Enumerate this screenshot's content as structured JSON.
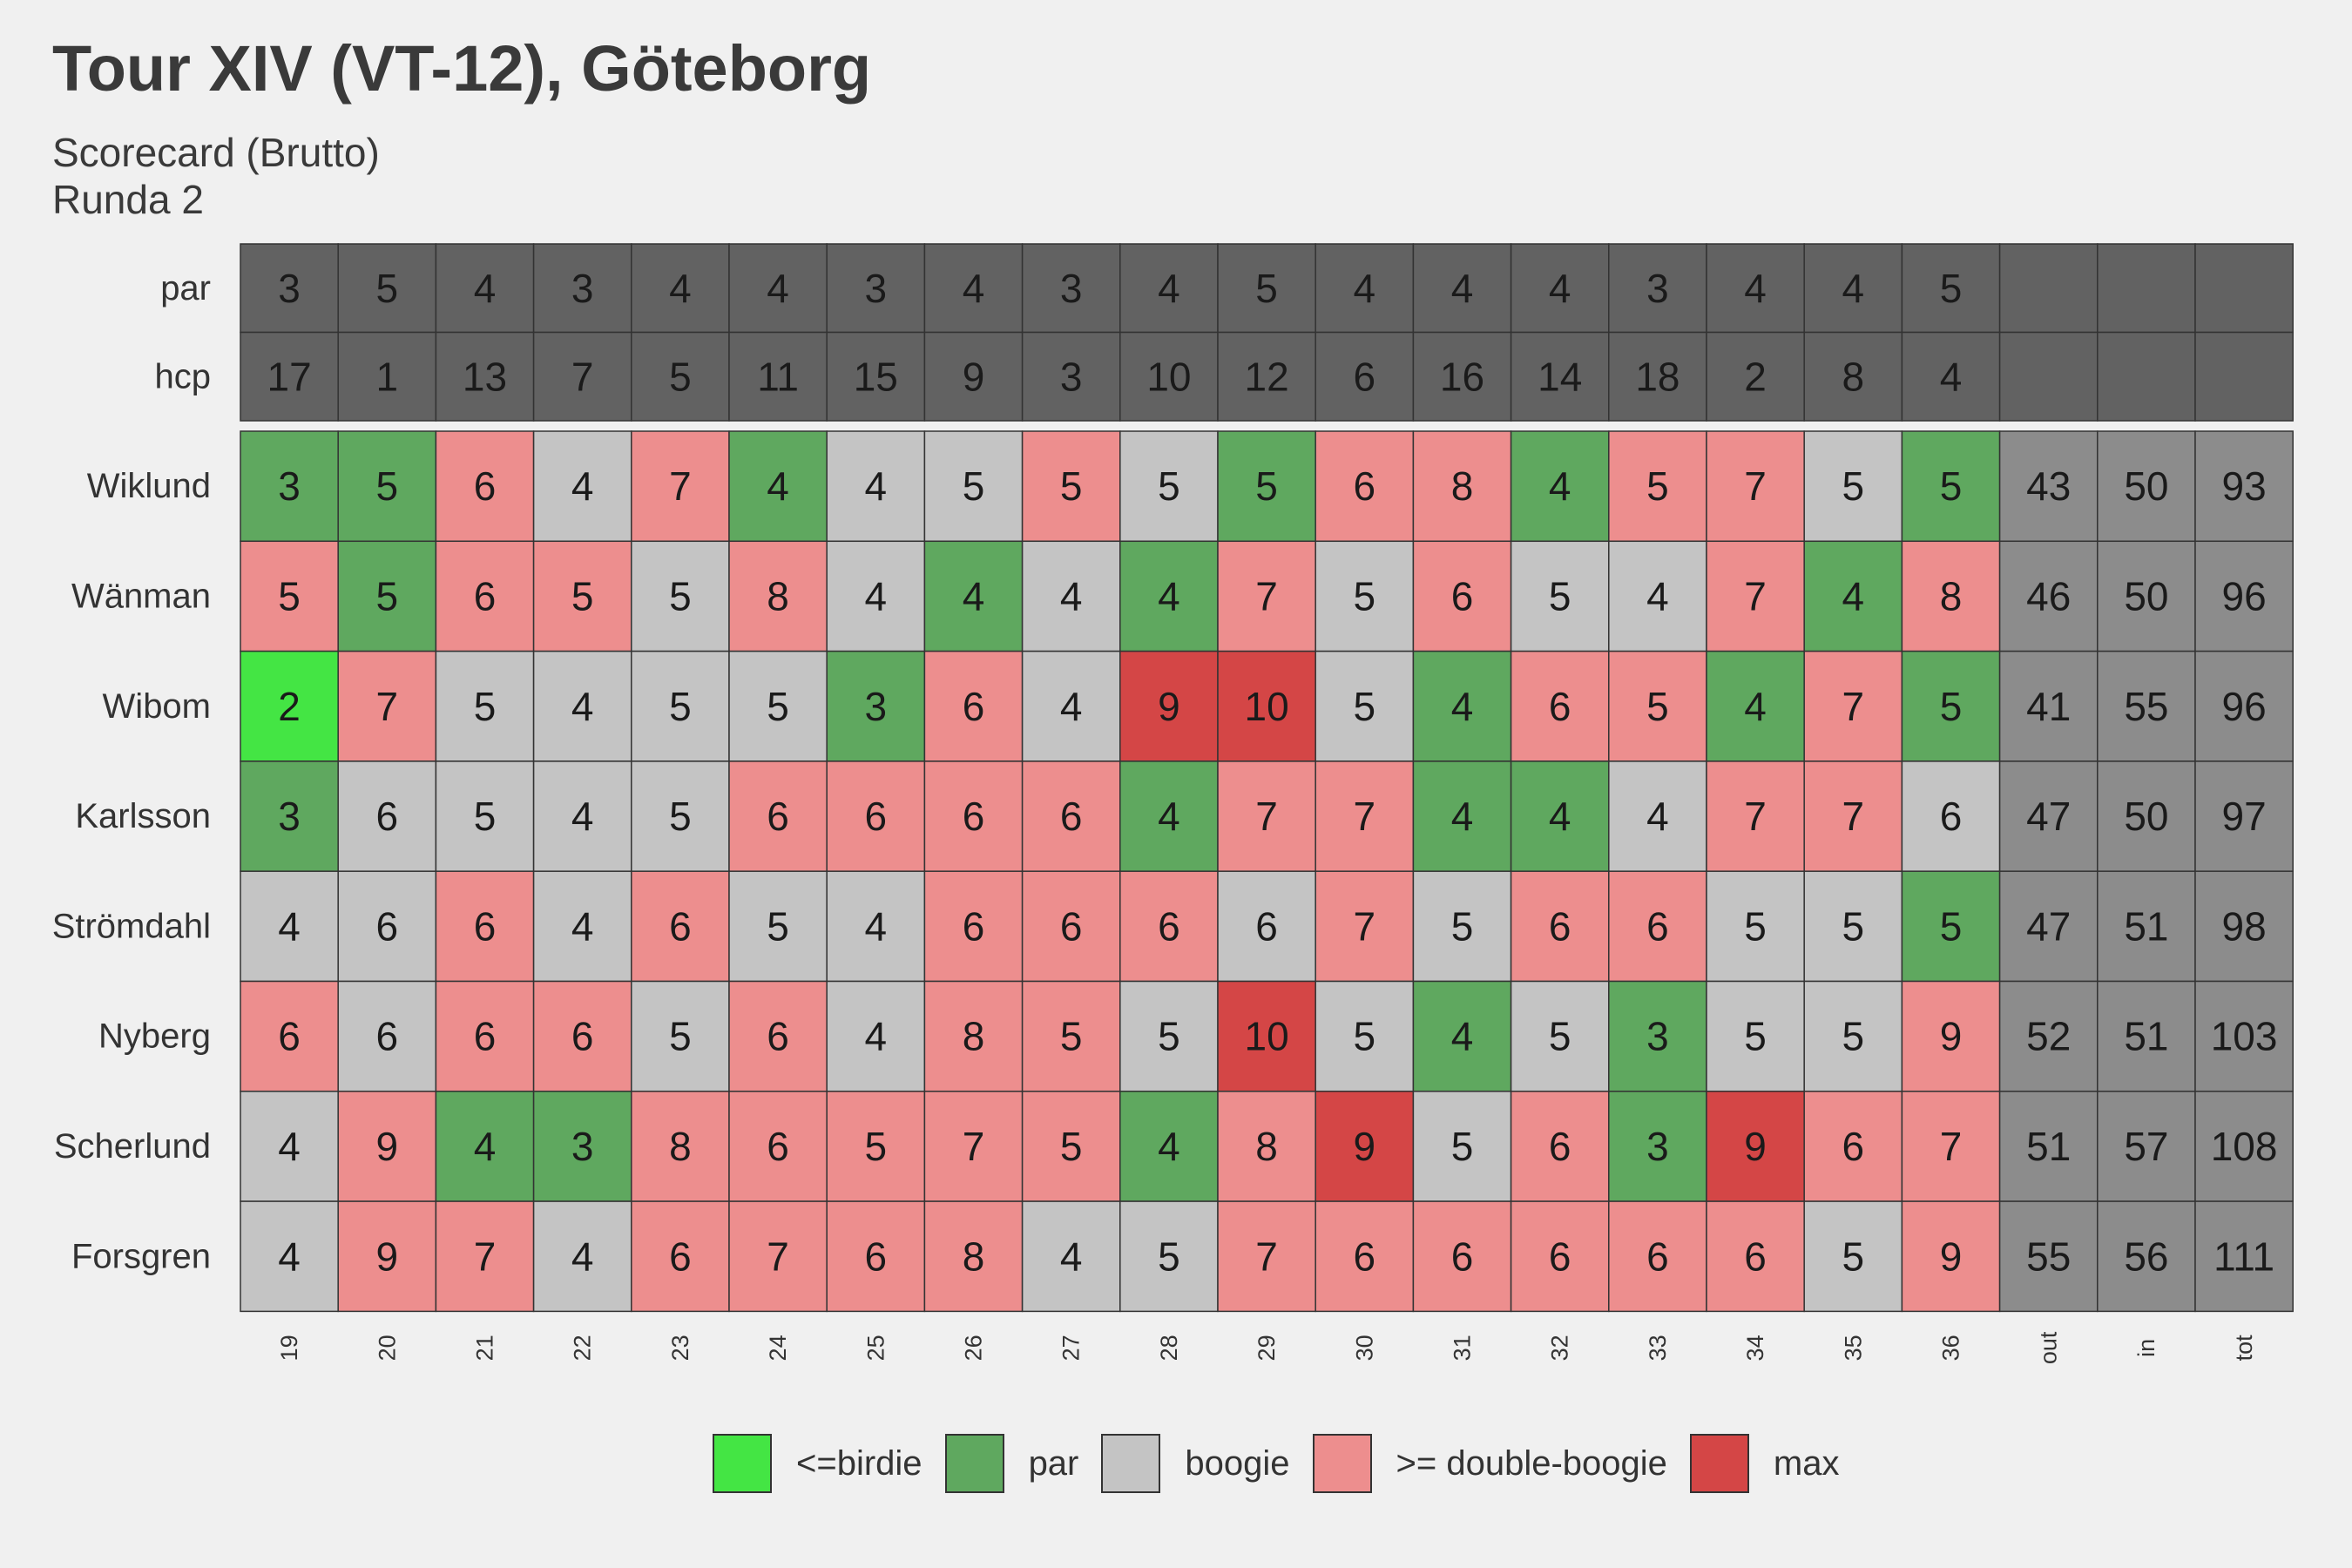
{
  "chart_data": {
    "type": "heatmap",
    "title": "Tour XIV (VT-12), Göteborg",
    "subtitle_lines": [
      "Scorecard (Brutto)",
      "Runda 2"
    ],
    "holes": [
      "19",
      "20",
      "21",
      "22",
      "23",
      "24",
      "25",
      "26",
      "27",
      "28",
      "29",
      "30",
      "31",
      "32",
      "33",
      "34",
      "35",
      "36"
    ],
    "summary_columns": [
      "out",
      "in",
      "tot"
    ],
    "header_rows": [
      {
        "label": "par",
        "values": [
          3,
          5,
          4,
          3,
          4,
          4,
          3,
          4,
          3,
          4,
          5,
          4,
          4,
          4,
          3,
          4,
          4,
          5
        ]
      },
      {
        "label": "hcp",
        "values": [
          17,
          1,
          13,
          7,
          5,
          11,
          15,
          9,
          3,
          10,
          12,
          6,
          16,
          14,
          18,
          2,
          8,
          4
        ]
      }
    ],
    "players": [
      {
        "name": "Wiklund",
        "scores": [
          3,
          5,
          6,
          4,
          7,
          4,
          4,
          5,
          5,
          5,
          5,
          6,
          8,
          4,
          5,
          7,
          5,
          5
        ],
        "cats": [
          "par",
          "par",
          "dbl",
          "bogey",
          "dbl",
          "par",
          "bogey",
          "bogey",
          "dbl",
          "bogey",
          "par",
          "dbl",
          "dbl",
          "par",
          "dbl",
          "dbl",
          "bogey",
          "par"
        ],
        "totals": [
          43,
          50,
          93
        ]
      },
      {
        "name": "Wänman",
        "scores": [
          5,
          5,
          6,
          5,
          5,
          8,
          4,
          4,
          4,
          4,
          7,
          5,
          6,
          5,
          4,
          7,
          4,
          8
        ],
        "cats": [
          "dbl",
          "par",
          "dbl",
          "dbl",
          "bogey",
          "dbl",
          "bogey",
          "par",
          "bogey",
          "par",
          "dbl",
          "bogey",
          "dbl",
          "bogey",
          "bogey",
          "dbl",
          "par",
          "dbl"
        ],
        "totals": [
          46,
          50,
          96
        ]
      },
      {
        "name": "Wibom",
        "scores": [
          2,
          7,
          5,
          4,
          5,
          5,
          3,
          6,
          4,
          9,
          10,
          5,
          4,
          6,
          5,
          4,
          7,
          5
        ],
        "cats": [
          "birdie",
          "dbl",
          "bogey",
          "bogey",
          "bogey",
          "bogey",
          "par",
          "dbl",
          "bogey",
          "max",
          "max",
          "bogey",
          "par",
          "dbl",
          "dbl",
          "par",
          "dbl",
          "par"
        ],
        "totals": [
          41,
          55,
          96
        ]
      },
      {
        "name": "Karlsson",
        "scores": [
          3,
          6,
          5,
          4,
          5,
          6,
          6,
          6,
          6,
          4,
          7,
          7,
          4,
          4,
          4,
          7,
          7,
          6
        ],
        "cats": [
          "par",
          "bogey",
          "bogey",
          "bogey",
          "bogey",
          "dbl",
          "dbl",
          "dbl",
          "dbl",
          "par",
          "dbl",
          "dbl",
          "par",
          "par",
          "bogey",
          "dbl",
          "dbl",
          "bogey"
        ],
        "totals": [
          47,
          50,
          97
        ]
      },
      {
        "name": "Strömdahl",
        "scores": [
          4,
          6,
          6,
          4,
          6,
          5,
          4,
          6,
          6,
          6,
          6,
          7,
          5,
          6,
          6,
          5,
          5,
          5
        ],
        "cats": [
          "bogey",
          "bogey",
          "dbl",
          "bogey",
          "dbl",
          "bogey",
          "bogey",
          "dbl",
          "dbl",
          "dbl",
          "bogey",
          "dbl",
          "bogey",
          "dbl",
          "dbl",
          "bogey",
          "bogey",
          "par"
        ],
        "totals": [
          47,
          51,
          98
        ]
      },
      {
        "name": "Nyberg",
        "scores": [
          6,
          6,
          6,
          6,
          5,
          6,
          4,
          8,
          5,
          5,
          10,
          5,
          4,
          5,
          3,
          5,
          5,
          9
        ],
        "cats": [
          "dbl",
          "bogey",
          "dbl",
          "dbl",
          "bogey",
          "dbl",
          "bogey",
          "dbl",
          "dbl",
          "bogey",
          "max",
          "bogey",
          "par",
          "bogey",
          "par",
          "bogey",
          "bogey",
          "dbl"
        ],
        "totals": [
          52,
          51,
          103
        ]
      },
      {
        "name": "Scherlund",
        "scores": [
          4,
          9,
          4,
          3,
          8,
          6,
          5,
          7,
          5,
          4,
          8,
          9,
          5,
          6,
          3,
          9,
          6,
          7
        ],
        "cats": [
          "bogey",
          "dbl",
          "par",
          "par",
          "dbl",
          "dbl",
          "dbl",
          "dbl",
          "dbl",
          "par",
          "dbl",
          "max",
          "bogey",
          "dbl",
          "par",
          "max",
          "dbl",
          "dbl"
        ],
        "totals": [
          51,
          57,
          108
        ]
      },
      {
        "name": "Forsgren",
        "scores": [
          4,
          9,
          7,
          4,
          6,
          7,
          6,
          8,
          4,
          5,
          7,
          6,
          6,
          6,
          6,
          6,
          5,
          9
        ],
        "cats": [
          "bogey",
          "dbl",
          "dbl",
          "bogey",
          "dbl",
          "dbl",
          "dbl",
          "dbl",
          "bogey",
          "bogey",
          "dbl",
          "dbl",
          "dbl",
          "dbl",
          "dbl",
          "dbl",
          "bogey",
          "dbl"
        ],
        "totals": [
          55,
          56,
          111
        ]
      }
    ],
    "legend": [
      {
        "key": "birdie",
        "label": "<=birdie",
        "color": "#44e544"
      },
      {
        "key": "par",
        "label": "par",
        "color": "#5fa85f"
      },
      {
        "key": "bogey",
        "label": "boogie",
        "color": "#c4c4c4"
      },
      {
        "key": "dbl",
        "label": ">= double-boogie",
        "color": "#ed8e8e"
      },
      {
        "key": "max",
        "label": "max",
        "color": "#d44646"
      }
    ],
    "colors": {
      "header_fill": "#626262",
      "summary_fill": "#8c8c8c",
      "background": "#f0f0f0",
      "grid_line": "#333333"
    }
  }
}
